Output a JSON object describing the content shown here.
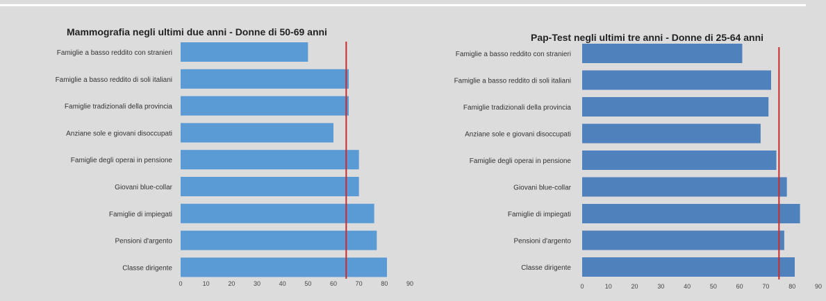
{
  "chart_data": [
    {
      "type": "bar",
      "orientation": "horizontal",
      "title": "Mammografia  negli ultimi due anni - Donne di 50-69 anni",
      "categories": [
        "Famiglie a basso reddito con stranieri",
        "Famiglie a basso reddito di soli italiani",
        "Famiglie tradizionali della provincia",
        "Anziane sole e giovani disoccupati",
        "Famiglie degli operai in pensione",
        "Giovani blue-collar",
        "Famiglie di impiegati",
        "Pensioni d'argento",
        "Classe dirigente"
      ],
      "values": [
        50,
        66,
        66,
        60,
        70,
        70,
        76,
        77,
        81
      ],
      "reference_line": 65,
      "xlim": [
        0,
        90
      ],
      "xticks": [
        "0",
        "10",
        "20",
        "30",
        "40",
        "50",
        "60",
        "70",
        "80",
        "90"
      ],
      "bar_color": "#5b9bd5",
      "reference_color": "#cc2a2a",
      "grid": false
    },
    {
      "type": "bar",
      "orientation": "horizontal",
      "title": "Pap-Test negli ultimi tre anni - Donne di 25-64 anni",
      "categories": [
        "Famiglie a basso reddito con stranieri",
        "Famiglie a basso reddito di soli italiani",
        "Famiglie tradizionali della provincia",
        "Anziane sole e giovani disoccupati",
        "Famiglie degli operai in pensione",
        "Giovani blue-collar",
        "Famiglie di impiegati",
        "Pensioni d'argento",
        "Classe dirigente"
      ],
      "values": [
        61,
        72,
        71,
        68,
        74,
        78,
        83,
        77,
        81
      ],
      "reference_line": 75,
      "xlim": [
        0,
        90
      ],
      "xticks": [
        "0",
        "10",
        "20",
        "30",
        "40",
        "50",
        "60",
        "70",
        "80",
        "90"
      ],
      "bar_color": "#4f81bd",
      "reference_color": "#cc2a2a",
      "grid": false
    }
  ]
}
